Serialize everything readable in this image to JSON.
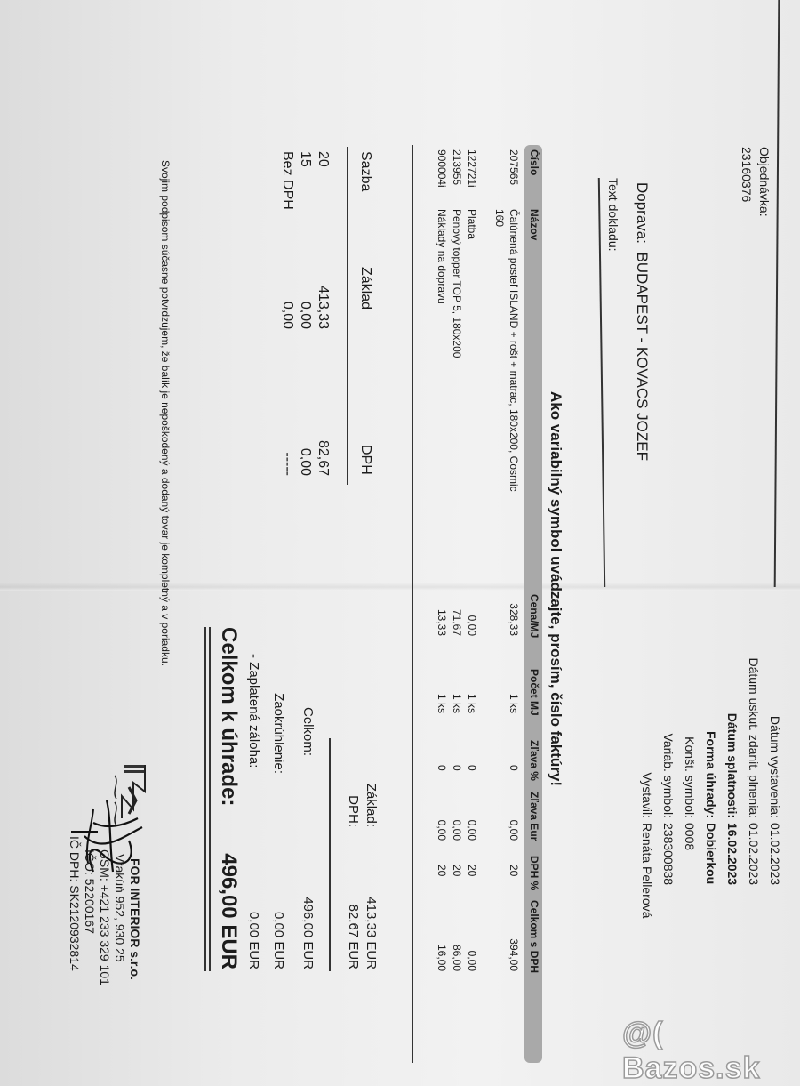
{
  "order": {
    "label": "Objednávka:",
    "number": "23160376"
  },
  "meta": [
    {
      "label": "Dátum vystavenia:",
      "value": "01.02.2023",
      "bold": false
    },
    {
      "label": "Dátum uskut. zdanit. plnenia:",
      "value": "01.02.2023",
      "bold": false
    },
    {
      "label": "Dátum splatnosti:",
      "value": "16.02.2023",
      "bold": true
    },
    {
      "label": "Forma úhrady:",
      "value": "Dobierkou",
      "bold": true
    },
    {
      "label": "Konšt. symbol:",
      "value": "0008",
      "bold": false
    },
    {
      "label": "Variab. symbol:",
      "value": "238300838",
      "bold": false
    },
    {
      "label": "Vystavil:",
      "value": "Renáta Pellerová",
      "bold": false
    }
  ],
  "shipping": {
    "label": "Doprava:",
    "value": "BUDAPEST - KOVACS JOZEF"
  },
  "doc_text_label": "Text dokladu:",
  "notice": "Ako variabilný symbol uvádzajte, prosím, číslo faktúry!",
  "items_table": {
    "headers": [
      "Číslo",
      "Názov",
      "Cena/MJ",
      "Počet MJ",
      "Zľava %",
      "Zľava Eur",
      "DPH %",
      "Celkom s DPH"
    ],
    "rows": [
      {
        "code": "207565",
        "name": "Čalúnená posteľ ISLAND + rošt + matrac, 180x200, Cosmic",
        "name2": "160",
        "price": "328,33",
        "qty": "1 ks",
        "disc_pct": "0",
        "disc_eur": "0,00",
        "vat": "20",
        "total": "394,00"
      },
      {
        "code": "122721i",
        "name": "Platba",
        "name2": "",
        "price": "0,00",
        "qty": "1 ks",
        "disc_pct": "0",
        "disc_eur": "0,00",
        "vat": "20",
        "total": "0,00"
      },
      {
        "code": "213955",
        "name": "Penový topper TOP 5, 180x200",
        "name2": "",
        "price": "71,67",
        "qty": "1 ks",
        "disc_pct": "0",
        "disc_eur": "0,00",
        "vat": "20",
        "total": "86,00"
      },
      {
        "code": "900004i",
        "name": "Náklady na dopravu",
        "name2": "",
        "price": "13,33",
        "qty": "1 ks",
        "disc_pct": "0",
        "disc_eur": "0,00",
        "vat": "20",
        "total": "16,00"
      }
    ]
  },
  "vat_table": {
    "headers": [
      "Sazba",
      "Základ",
      "DPH"
    ],
    "rows": [
      {
        "rate": "20",
        "base": "413,33",
        "vat": "82,67"
      },
      {
        "rate": "15",
        "base": "0,00",
        "vat": "0,00"
      },
      {
        "rate": "Bez DPH",
        "base": "0,00",
        "vat": "-----"
      }
    ]
  },
  "totals": {
    "base": {
      "label": "Základ:",
      "value": "413,33 EUR"
    },
    "vat": {
      "label": "DPH:",
      "value": "82,67 EUR"
    },
    "total": {
      "label": "Celkom:",
      "value": "496,00 EUR"
    },
    "rounding": {
      "label": "Zaokrúhlenie:",
      "value": "0,00 EUR"
    },
    "deposit": {
      "label": "- Zaplatená záloha:",
      "value": "0,00 EUR"
    },
    "due": {
      "label": "Celkom k úhrade:",
      "value": "496,00 EUR"
    }
  },
  "declaration": "Svojim podpisom súčasne potvrdzujem, že balík je nepoškodený a dodaný tovar je kompletný a v poriadku.",
  "company": {
    "name": "FOR INTERIOR s.r.o.",
    "address": "Vrakúň 952, 930 25",
    "gsm": "GSM: +421 233 329 101",
    "ico": "IČO: 52200167",
    "icdph": "IČ DPH: SK2120932814",
    "stamp_text": "FOR INTERIOR"
  },
  "watermark": "@( Bazos.sk"
}
